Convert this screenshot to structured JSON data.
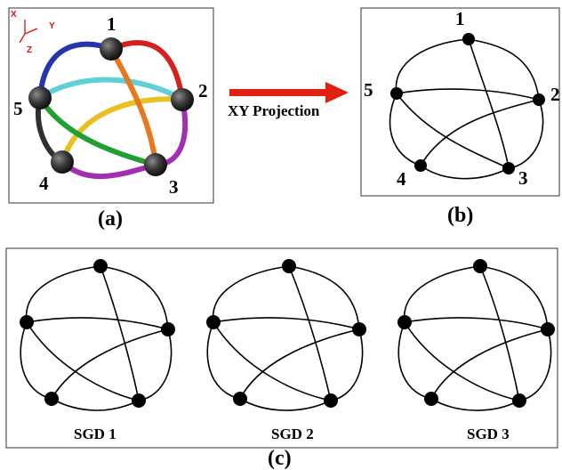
{
  "panel_a": {
    "caption": "(a)",
    "axes": {
      "x": "X",
      "y": "Y",
      "z": "Z"
    },
    "nodes": [
      "1",
      "2",
      "3",
      "4",
      "5"
    ]
  },
  "arrow": {
    "label": "XY Projection"
  },
  "panel_b": {
    "caption": "(b)",
    "nodes": [
      "1",
      "2",
      "3",
      "4",
      "5"
    ]
  },
  "panel_c": {
    "caption": "(c)",
    "diagrams": [
      {
        "label": "SGD 1"
      },
      {
        "label": "SGD 2"
      },
      {
        "label": "SGD 3"
      }
    ]
  },
  "colors": {
    "edge_1_2": "#d62020",
    "edge_1_5": "#2535b0",
    "edge_2_5": "#5fd0d8",
    "edge_1_3": "#e87820",
    "edge_2_4": "#e8c020",
    "edge_3_5": "#20a030",
    "edge_4_5": "#303030",
    "edge_2_3_4": "#a030b0",
    "arrow": "#e02010"
  }
}
